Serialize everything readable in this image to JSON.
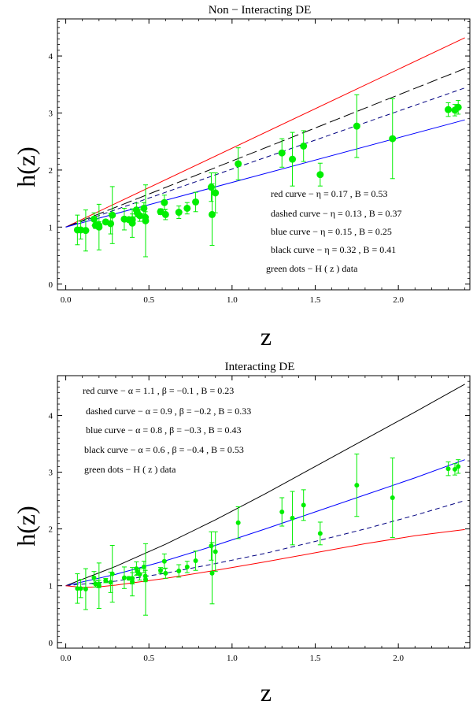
{
  "chart_data": [
    {
      "type": "line",
      "title": "Non − Interacting DE",
      "xlabel": "z",
      "ylabel": "h(z)",
      "xlim": [
        -0.05,
        2.43
      ],
      "ylim": [
        -0.1,
        4.65
      ],
      "xticks": [
        0.0,
        0.5,
        1.0,
        1.5,
        2.0
      ],
      "xtick_labels": [
        "0.0",
        "0.5",
        "1.0",
        "1.5",
        "2.0"
      ],
      "yticks": [
        0,
        1,
        2,
        3,
        4
      ],
      "ytick_labels": [
        "0",
        "1",
        "2",
        "3",
        "4"
      ],
      "series": [
        {
          "name": "red curve",
          "color": "#ff0000",
          "dash": "solid",
          "x": [
            0,
            2.4
          ],
          "y": [
            1.0,
            4.32
          ]
        },
        {
          "name": "black curve",
          "color": "#000000",
          "dash": "longdash",
          "x": [
            0,
            2.4
          ],
          "y": [
            1.0,
            3.78
          ]
        },
        {
          "name": "dashed curve",
          "color": "#000080",
          "dash": "dashed",
          "x": [
            0,
            2.4
          ],
          "y": [
            1.0,
            3.44
          ]
        },
        {
          "name": "blue curve",
          "color": "#0000ff",
          "dash": "solid",
          "x": [
            0,
            2.4
          ],
          "y": [
            1.0,
            2.88
          ]
        }
      ],
      "legend": [
        "red curve −  η = 0.17 ,  B = 0.53",
        "dashed curve −  η = 0.13 ,  B = 0.37",
        "blue curve −  η = 0.15 ,  B = 0.25",
        "black curve −  η = 0.32 ,  B = 0.41",
        "green dots −  H ( z )  data"
      ],
      "legend_position": "lower-right",
      "marker_size": 4.5
    },
    {
      "type": "line",
      "title": "Interacting DE",
      "xlabel": "z",
      "ylabel": "h(z)",
      "xlim": [
        -0.05,
        2.43
      ],
      "ylim": [
        -0.1,
        4.7
      ],
      "xticks": [
        0.0,
        0.5,
        1.0,
        1.5,
        2.0
      ],
      "xtick_labels": [
        "0.0",
        "0.5",
        "1.0",
        "1.5",
        "2.0"
      ],
      "yticks": [
        0,
        1,
        2,
        3,
        4
      ],
      "ytick_labels": [
        "0",
        "1",
        "2",
        "3",
        "4"
      ],
      "series": [
        {
          "name": "black curve",
          "color": "#000000",
          "dash": "solid",
          "x": [
            0,
            0.3,
            0.6,
            0.9,
            1.2,
            1.5,
            1.8,
            2.1,
            2.4
          ],
          "y": [
            1.0,
            1.34,
            1.73,
            2.16,
            2.62,
            3.1,
            3.58,
            4.06,
            4.55
          ]
        },
        {
          "name": "blue curve",
          "color": "#0000ff",
          "dash": "solid",
          "x": [
            0,
            0.3,
            0.6,
            0.9,
            1.2,
            1.5,
            1.8,
            2.1,
            2.4
          ],
          "y": [
            1.0,
            1.2,
            1.44,
            1.71,
            2.0,
            2.3,
            2.6,
            2.9,
            3.22
          ]
        },
        {
          "name": "dashed curve",
          "color": "#000080",
          "dash": "dashed",
          "x": [
            0,
            0.3,
            0.6,
            0.9,
            1.2,
            1.5,
            1.8,
            2.1,
            2.4
          ],
          "y": [
            1.0,
            1.08,
            1.22,
            1.39,
            1.57,
            1.78,
            2.0,
            2.24,
            2.5
          ]
        },
        {
          "name": "red curve",
          "color": "#ff0000",
          "dash": "solid",
          "x": [
            0,
            0.1,
            0.2,
            0.3,
            0.6,
            0.9,
            1.2,
            1.5,
            1.8,
            2.1,
            2.4
          ],
          "y": [
            1.0,
            0.97,
            0.98,
            1.01,
            1.13,
            1.27,
            1.42,
            1.58,
            1.74,
            1.88,
            1.99
          ]
        }
      ],
      "legend": [
        "red curve −  α = 1.1 ,  β = −0.1 ,  B = 0.23",
        "dashed curve −  α = 0.9 ,  β = −0.2 ,  B = 0.33",
        "blue curve −  α = 0.8 ,  β = −0.3 ,  B = 0.43",
        "black curve −  α = 0.6 ,  β = −0.4 ,  B = 0.53",
        "green dots −  H ( z )  data"
      ],
      "legend_position": "upper-left",
      "marker_size": 3
    }
  ],
  "hz_data": {
    "color": "#00ee00",
    "points": [
      {
        "z": 0.07,
        "h": 0.95,
        "err": 0.26
      },
      {
        "z": 0.09,
        "h": 0.95,
        "err": 0.16
      },
      {
        "z": 0.12,
        "h": 0.94,
        "err": 0.36
      },
      {
        "z": 0.17,
        "h": 1.14,
        "err": 0.11
      },
      {
        "z": 0.179,
        "h": 1.03,
        "err": 0.055
      },
      {
        "z": 0.199,
        "h": 1.03,
        "err": 0.065
      },
      {
        "z": 0.2,
        "h": 1.0,
        "err": 0.4
      },
      {
        "z": 0.24,
        "h": 1.09,
        "err": 0.037
      },
      {
        "z": 0.27,
        "h": 1.06,
        "err": 0.18
      },
      {
        "z": 0.28,
        "h": 1.21,
        "err": 0.5
      },
      {
        "z": 0.352,
        "h": 1.14,
        "err": 0.19
      },
      {
        "z": 0.38,
        "h": 1.13,
        "err": 0.03
      },
      {
        "z": 0.4,
        "h": 1.07,
        "err": 0.25
      },
      {
        "z": 0.4004,
        "h": 1.13,
        "err": 0.1
      },
      {
        "z": 0.425,
        "h": 1.3,
        "err": 0.12
      },
      {
        "z": 0.43,
        "h": 1.25,
        "err": 0.055
      },
      {
        "z": 0.445,
        "h": 1.2,
        "err": 0.1
      },
      {
        "z": 0.47,
        "h": 1.33,
        "err": 0.1
      },
      {
        "z": 0.4783,
        "h": 1.17,
        "err": 0.1
      },
      {
        "z": 0.48,
        "h": 1.11,
        "err": 0.63
      },
      {
        "z": 0.57,
        "h": 1.27,
        "err": 0.05
      },
      {
        "z": 0.593,
        "h": 1.43,
        "err": 0.13
      },
      {
        "z": 0.6,
        "h": 1.22,
        "err": 0.09
      },
      {
        "z": 0.68,
        "h": 1.26,
        "err": 0.11
      },
      {
        "z": 0.73,
        "h": 1.33,
        "err": 0.1
      },
      {
        "z": 0.781,
        "h": 1.44,
        "err": 0.17
      },
      {
        "z": 0.875,
        "h": 1.7,
        "err": 0.25
      },
      {
        "z": 0.88,
        "h": 1.22,
        "err": 0.54
      },
      {
        "z": 0.9,
        "h": 1.6,
        "err": 0.35
      },
      {
        "z": 1.037,
        "h": 2.11,
        "err": 0.28
      },
      {
        "z": 1.3,
        "h": 2.3,
        "err": 0.25
      },
      {
        "z": 1.363,
        "h": 2.19,
        "err": 0.47
      },
      {
        "z": 1.43,
        "h": 2.42,
        "err": 0.27
      },
      {
        "z": 1.53,
        "h": 1.92,
        "err": 0.2
      },
      {
        "z": 1.75,
        "h": 2.77,
        "err": 0.55
      },
      {
        "z": 1.965,
        "h": 2.55,
        "err": 0.7
      },
      {
        "z": 2.3,
        "h": 3.06,
        "err": 0.12
      },
      {
        "z": 2.34,
        "h": 3.05,
        "err": 0.1
      },
      {
        "z": 2.36,
        "h": 3.1,
        "err": 0.12
      }
    ]
  }
}
